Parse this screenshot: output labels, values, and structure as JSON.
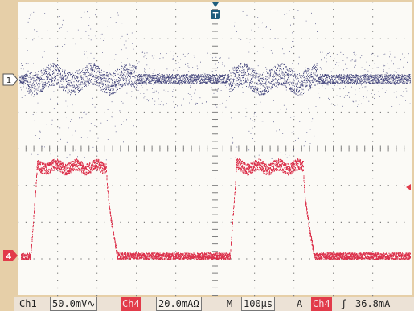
{
  "markers": {
    "trigger_marker": "T",
    "ch1_marker": "1",
    "ch4_marker": "4"
  },
  "status": {
    "ch1_label": "Ch1",
    "ch1_scale": "50.0mV∿",
    "ch4_label": "Ch4",
    "ch4_scale": "20.0mAΩ",
    "time_label": "M",
    "time_scale": "100µs",
    "trig_label": "A",
    "trig_source": "Ch4",
    "trig_slope": "ʃ",
    "trig_level": "36.8mA"
  },
  "colors": {
    "ch1": "#2a2d6c",
    "ch4": "#d81e3c",
    "graticule": "#7f7f7f",
    "background": "#fbfaf6",
    "frame": "#e6cfa8",
    "trigger_marker": "#1f5e7e"
  }
}
